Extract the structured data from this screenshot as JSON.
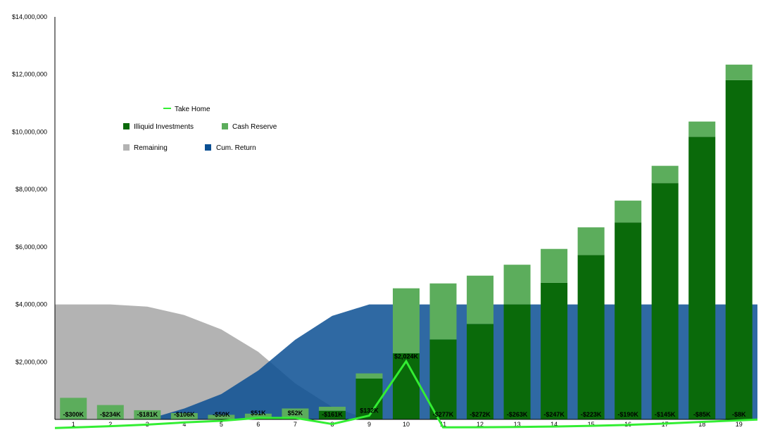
{
  "chart_data": {
    "type": "bar",
    "categories": [
      "1",
      "2",
      "3",
      "4",
      "5",
      "6",
      "7",
      "8",
      "9",
      "10",
      "11",
      "12",
      "13",
      "14",
      "15",
      "16",
      "17",
      "18",
      "19"
    ],
    "ylim": [
      -300000,
      14000000
    ],
    "y_ticks": [
      "$2,000,000",
      "$4,000,000",
      "$6,000,000",
      "$8,000,000",
      "$10,000,000",
      "$12,000,000",
      "$14,000,000"
    ],
    "y_tick_values": [
      2000000,
      4000000,
      6000000,
      8000000,
      10000000,
      12000000,
      14000000
    ],
    "grid": false,
    "legend_position": "top-left",
    "colors": {
      "take_home": "#33ee33",
      "illiquid": "#0a6a0a",
      "cash": "#5cad5c",
      "remaining": "#b3b3b3",
      "cum_return": "#0a4f93"
    },
    "legend": {
      "take_home": "Take Home",
      "illiquid": "Illiquid Investments",
      "cash": "Cash Reserve",
      "remaining": "Remaining",
      "cum_return": "Cum. Return"
    },
    "series": [
      {
        "name": "Remaining",
        "type": "area",
        "values": [
          4000000,
          4000000,
          3920000,
          3630000,
          3130000,
          2350000,
          1250000,
          430000,
          0,
          0,
          0,
          0,
          0,
          0,
          0,
          0,
          0,
          0,
          0
        ]
      },
      {
        "name": "Cum. Return",
        "type": "area",
        "values": [
          0,
          0,
          0,
          380000,
          880000,
          1700000,
          2770000,
          3600000,
          4000000,
          4000000,
          4000000,
          4000000,
          4000000,
          4000000,
          4000000,
          4000000,
          4000000,
          4000000,
          4000000
        ]
      },
      {
        "name": "Illiquid Investments",
        "type": "bar",
        "values": [
          0,
          0,
          0,
          0,
          0,
          0,
          0,
          300000,
          1420000,
          2300000,
          2780000,
          3320000,
          4000000,
          4750000,
          5720000,
          6850000,
          8220000,
          9830000,
          11800000
        ]
      },
      {
        "name": "Cash Reserve",
        "type": "bar",
        "values": [
          750000,
          500000,
          320000,
          220000,
          160000,
          200000,
          380000,
          140000,
          180000,
          2260000,
          1950000,
          1680000,
          1380000,
          1180000,
          960000,
          760000,
          600000,
          530000,
          540000
        ]
      },
      {
        "name": "Take Home",
        "type": "line",
        "values": [
          -300000,
          -234000,
          -181000,
          -106000,
          -50000,
          51000,
          52000,
          -161000,
          132000,
          2024000,
          -277000,
          -272000,
          -263000,
          -247000,
          -223000,
          -190000,
          -145000,
          -85000,
          -8000
        ],
        "labels": [
          "-$300K",
          "-$234K",
          "-$181K",
          "-$106K",
          "-$50K",
          "$51K",
          "$52K",
          "-$161K",
          "$132K",
          "$2,024K",
          "-$277K",
          "-$272K",
          "-$263K",
          "-$247K",
          "-$223K",
          "-$190K",
          "-$145K",
          "-$85K",
          "-$8K"
        ]
      }
    ]
  }
}
